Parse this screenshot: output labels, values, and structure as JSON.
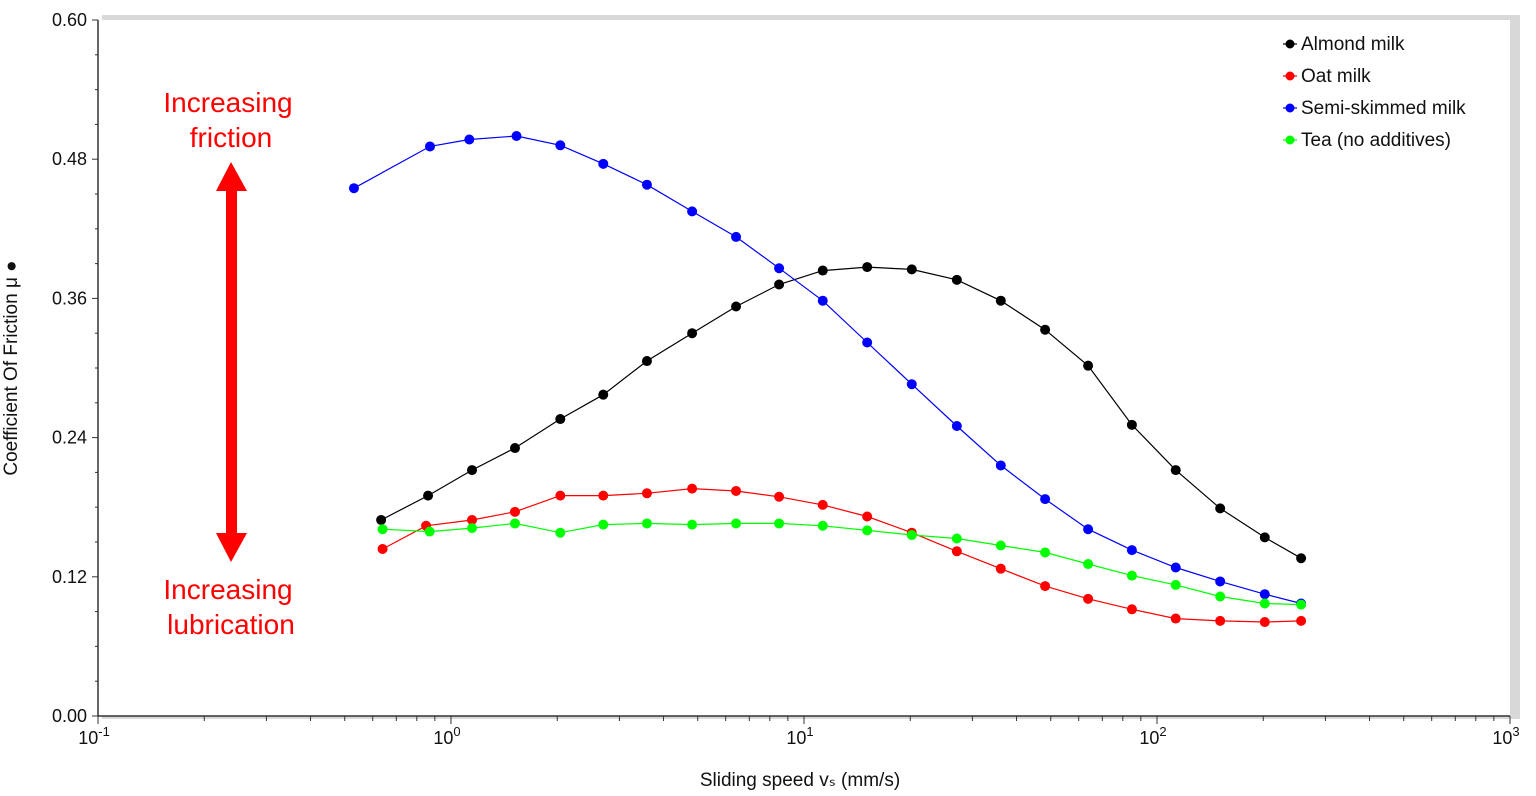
{
  "chart_data": {
    "type": "line",
    "title": "",
    "xlabel": "Sliding speed vₛ  (mm/s)",
    "ylabel": "Coefficient Of Friction  μ ●",
    "xscale": "log",
    "xlim": [
      0.1,
      1000
    ],
    "ylim": [
      0,
      0.6
    ],
    "x_tick_labels": [
      {
        "base": "10",
        "exp": "-1"
      },
      {
        "base": "10",
        "exp": "0"
      },
      {
        "base": "10",
        "exp": "1"
      },
      {
        "base": "10",
        "exp": "2"
      },
      {
        "base": "10",
        "exp": "3"
      }
    ],
    "y_ticks": [
      0,
      0.12,
      0.24,
      0.36,
      0.48,
      0.6
    ],
    "y_tick_labels": [
      "0.00",
      "0.12",
      "0.24",
      "0.36",
      "0.48",
      "0.60"
    ],
    "grid": false,
    "legend_position": "top-right",
    "annotations": {
      "top": [
        "Increasing",
        "friction"
      ],
      "bottom": [
        "Increasing",
        "lubrication"
      ],
      "color": "#ff0000"
    },
    "series": [
      {
        "name": "Almond milk",
        "color": "#000000",
        "x": [
          0.634,
          0.861,
          1.147,
          1.518,
          2.04,
          2.7,
          3.59,
          4.82,
          6.42,
          8.5,
          11.3,
          15.1,
          20.2,
          27.1,
          36.1,
          48.2,
          63.8,
          84.9,
          113,
          151,
          202,
          256
        ],
        "y": [
          0.169,
          0.19,
          0.212,
          0.231,
          0.256,
          0.277,
          0.306,
          0.33,
          0.353,
          0.372,
          0.384,
          0.387,
          0.385,
          0.376,
          0.358,
          0.333,
          0.302,
          0.251,
          0.212,
          0.179,
          0.154,
          0.136
        ]
      },
      {
        "name": "Oat milk",
        "color": "#ff0000",
        "x": [
          0.64,
          0.85,
          1.147,
          1.518,
          2.04,
          2.7,
          3.59,
          4.82,
          6.42,
          8.5,
          11.3,
          15.1,
          20.2,
          27.1,
          36.1,
          48.2,
          63.8,
          84.9,
          113,
          151,
          202,
          256
        ],
        "y": [
          0.144,
          0.164,
          0.169,
          0.176,
          0.19,
          0.19,
          0.192,
          0.196,
          0.194,
          0.189,
          0.182,
          0.172,
          0.158,
          0.142,
          0.127,
          0.112,
          0.101,
          0.092,
          0.084,
          0.082,
          0.081,
          0.082
        ]
      },
      {
        "name": "Semi-skimmed milk",
        "color": "#0000ff",
        "x": [
          0.531,
          0.872,
          1.127,
          1.533,
          2.04,
          2.7,
          3.59,
          4.82,
          6.42,
          8.5,
          11.3,
          15.1,
          20.2,
          27.1,
          36.1,
          48.2,
          63.8,
          84.9,
          113,
          151,
          202,
          256
        ],
        "y": [
          0.455,
          0.491,
          0.497,
          0.5,
          0.492,
          0.476,
          0.458,
          0.435,
          0.413,
          0.386,
          0.358,
          0.322,
          0.286,
          0.25,
          0.216,
          0.187,
          0.161,
          0.143,
          0.128,
          0.116,
          0.105,
          0.097
        ]
      },
      {
        "name": "Tea (no additives)",
        "color": "#00ff00",
        "x": [
          0.64,
          0.87,
          1.147,
          1.518,
          2.04,
          2.7,
          3.59,
          4.82,
          6.42,
          8.5,
          11.3,
          15.1,
          20.2,
          27.1,
          36.1,
          48.2,
          63.8,
          84.9,
          113,
          151,
          202,
          256
        ],
        "y": [
          0.161,
          0.159,
          0.162,
          0.166,
          0.158,
          0.165,
          0.166,
          0.165,
          0.166,
          0.166,
          0.164,
          0.16,
          0.156,
          0.153,
          0.147,
          0.141,
          0.131,
          0.121,
          0.113,
          0.103,
          0.097,
          0.096
        ]
      }
    ]
  }
}
